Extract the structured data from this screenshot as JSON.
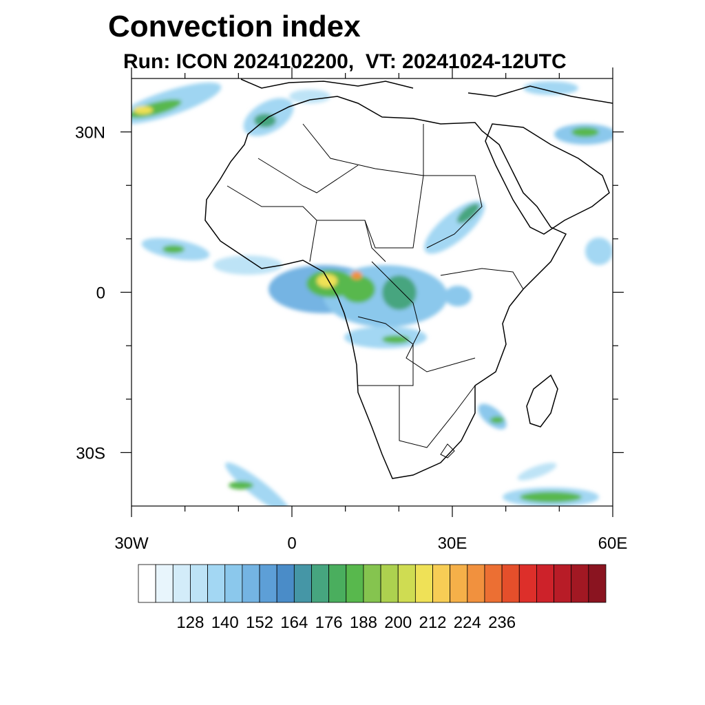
{
  "title": "Convection index",
  "subtitle": "Run: ICON 2024102200,  VT: 20241024-12UTC",
  "map": {
    "projection": "cylindrical equidistant",
    "lon_range": [
      -30,
      60
    ],
    "lat_range": [
      -40,
      40
    ],
    "lat_ticks": [
      {
        "value": 30,
        "label": "30N"
      },
      {
        "value": 0,
        "label": "0"
      },
      {
        "value": -30,
        "label": "30S"
      }
    ],
    "lon_ticks": [
      {
        "value": -30,
        "label": "30W"
      },
      {
        "value": 0,
        "label": "0"
      },
      {
        "value": 30,
        "label": "30E"
      },
      {
        "value": 60,
        "label": "60E"
      }
    ],
    "minor_lon_ticks": [
      -20,
      -10,
      10,
      20,
      40,
      50
    ],
    "minor_lat_ticks": [
      20,
      10,
      -10,
      -20
    ]
  },
  "colorbar": {
    "colors": [
      "#ffffff",
      "#e8f5fc",
      "#d3ecf9",
      "#bde3f6",
      "#a3d7f3",
      "#8bc8ec",
      "#74b4e3",
      "#5d9fd7",
      "#4a8cc8",
      "#4596a6",
      "#46a57f",
      "#4aae5e",
      "#58b84d",
      "#85c44f",
      "#add14f",
      "#cfdc52",
      "#efe157",
      "#f7cd55",
      "#f5b049",
      "#f1913e",
      "#ec6f33",
      "#e54f2b",
      "#dd2f2a",
      "#cd222a",
      "#b81c27",
      "#a21823",
      "#8a1420"
    ],
    "tick_labels": [
      "128",
      "140",
      "152",
      "164",
      "176",
      "188",
      "200",
      "212",
      "224",
      "236"
    ]
  }
}
